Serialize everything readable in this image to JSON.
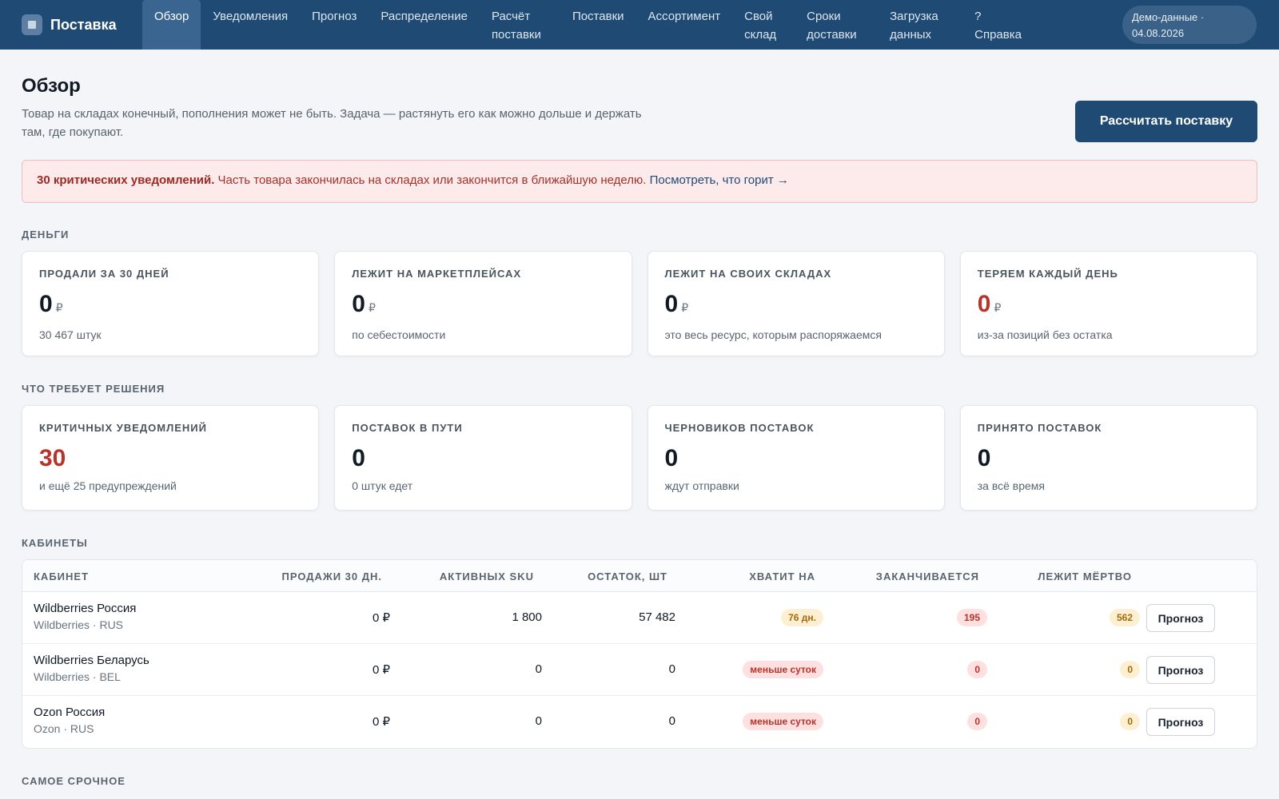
{
  "app": {
    "name": "Поставка"
  },
  "nav": [
    {
      "label": "Обзор",
      "active": true
    },
    {
      "label": "Уведомления"
    },
    {
      "label": "Прогноз"
    },
    {
      "label": "Распределение"
    },
    {
      "label": "Расчёт поставки"
    },
    {
      "label": "Поставки"
    },
    {
      "label": "Ассортимент"
    },
    {
      "label": "Свой склад"
    },
    {
      "label": "Сроки доставки"
    },
    {
      "label": "Загрузка данных"
    },
    {
      "label": "? Справка"
    }
  ],
  "demo": {
    "label": "Демо-данные · 04.08.2026"
  },
  "page": {
    "title": "Обзор",
    "description": "Товар на складах конечный, пополнения может не быть. Задача — растянуть его как можно дольше и держать там, где покупают.",
    "primary_button": "Рассчитать поставку"
  },
  "alert": {
    "strong": "30 критических уведомлений.",
    "text": " Часть товара закончилась на складах или закончится в ближайшую неделю. ",
    "link": "Посмотреть, что горит →"
  },
  "money": {
    "label": "ДЕНЬГИ",
    "cards": [
      {
        "label": "ПРОДАЛИ ЗА 30 ДНЕЙ",
        "value": "0",
        "currency": "₽",
        "sub": "30 467 штук"
      },
      {
        "label": "ЛЕЖИТ НА МАРКЕТПЛЕЙСАХ",
        "value": "0",
        "currency": "₽",
        "sub": "по себестоимости"
      },
      {
        "label": "ЛЕЖИТ НА СВОИХ СКЛАДАХ",
        "value": "0",
        "currency": "₽",
        "sub": "это весь ресурс, которым распоряжаемся"
      },
      {
        "label": "ТЕРЯЕМ КАЖДЫЙ ДЕНЬ",
        "value": "0",
        "currency": "₽",
        "sub": "из-за позиций без остатка"
      }
    ]
  },
  "decisions": {
    "label": "ЧТО ТРЕБУЕТ РЕШЕНИЯ",
    "cards": [
      {
        "label": "КРИТИЧНЫХ УВЕДОМЛЕНИЙ",
        "value": "30",
        "sub": "и ещё 25 предупреждений"
      },
      {
        "label": "ПОСТАВОК В ПУТИ",
        "value": "0",
        "sub": "0 штук едет"
      },
      {
        "label": "ЧЕРНОВИКОВ ПОСТАВОК",
        "value": "0",
        "sub": "ждут отправки"
      },
      {
        "label": "ПРИНЯТО ПОСТАВОК",
        "value": "0",
        "sub": "за всё время"
      }
    ]
  },
  "cabinets": {
    "label": "КАБИНЕТЫ",
    "columns": [
      "КАБИНЕТ",
      "ПРОДАЖИ 30 ДН.",
      "АКТИВНЫХ SKU",
      "ОСТАТОК, ШТ",
      "ХВАТИТ НА",
      "ЗАКАНЧИВАЕТСЯ",
      "ЛЕЖИТ МЁРТВО"
    ],
    "action_label": "Прогноз",
    "rows": [
      {
        "name": "Wildberries Россия",
        "sub": "Wildberries · RUS",
        "sales": "0 ₽",
        "sku": "1 800",
        "stock": "57 482",
        "enough": "76 дн.",
        "ending": "195",
        "dead": "562"
      },
      {
        "name": "Wildberries Беларусь",
        "sub": "Wildberries · BEL",
        "sales": "0 ₽",
        "sku": "0",
        "stock": "0",
        "enough": "меньше суток",
        "ending": "0",
        "dead": "0"
      },
      {
        "name": "Ozon Россия",
        "sub": "Ozon · RUS",
        "sales": "0 ₽",
        "sku": "0",
        "stock": "0",
        "enough": "меньше суток",
        "ending": "0",
        "dead": "0"
      }
    ]
  },
  "urgent": {
    "label": "САМОЕ СРОЧНОЕ"
  },
  "colors": {
    "nav_bg": "#1f4a73",
    "critical": "#b8332a",
    "warning": "#a26a0b",
    "alert_bg": "#fdeaea"
  },
  "icons": {
    "brand": "square-logo-icon"
  }
}
